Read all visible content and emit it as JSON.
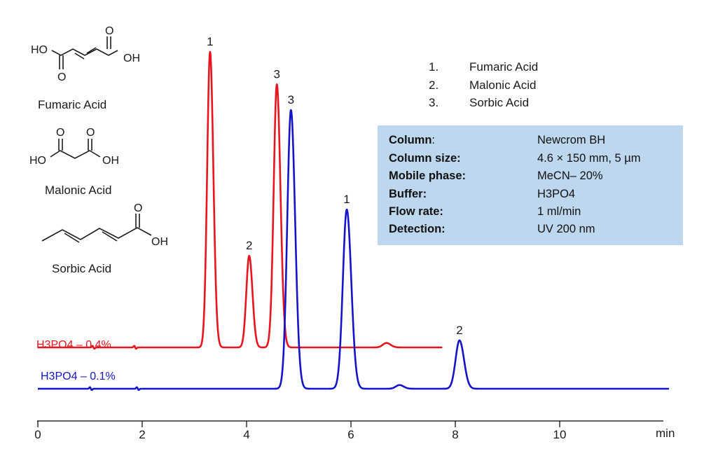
{
  "chart_data": {
    "type": "line",
    "xlabel": "min",
    "x_ticks": [
      0,
      2,
      4,
      6,
      8,
      10
    ],
    "xlim": [
      0,
      12.1
    ],
    "series": [
      {
        "name": "H3PO4 – 0.4%",
        "color": "#e8141e",
        "x_end": 7.75,
        "noise": [
          1.05,
          1.85
        ],
        "peaks": [
          {
            "label": "1",
            "time": 3.3,
            "height": 100,
            "width": 0.055
          },
          {
            "label": "2",
            "time": 4.05,
            "height": 31,
            "width": 0.055
          },
          {
            "label": "3",
            "time": 4.58,
            "height": 89,
            "width": 0.06
          },
          {
            "label": "",
            "time": 6.68,
            "height": 1.5,
            "width": 0.07
          }
        ]
      },
      {
        "name": "H3PO4 – 0.1%",
        "color": "#1414c8",
        "x_end": 12.1,
        "noise": [
          1.0,
          1.9
        ],
        "peaks": [
          {
            "label": "3",
            "time": 4.85,
            "height": 98,
            "width": 0.07
          },
          {
            "label": "1",
            "time": 5.92,
            "height": 63,
            "width": 0.075
          },
          {
            "label": "",
            "time": 6.93,
            "height": 1.3,
            "width": 0.07
          },
          {
            "label": "2",
            "time": 8.08,
            "height": 17,
            "width": 0.075
          }
        ]
      }
    ]
  },
  "compounds": {
    "fumaric": {
      "name": "Fumaric Acid",
      "ho": "HO",
      "oh": "OH",
      "o": "O"
    },
    "malonic": {
      "name": "Malonic Acid",
      "ho": "HO",
      "oh": "OH",
      "o": "O"
    },
    "sorbic": {
      "name": "Sorbic Acid",
      "oh": "OH",
      "o": "O"
    }
  },
  "legend": [
    {
      "num": "1.",
      "name": "Fumaric Acid"
    },
    {
      "num": "2.",
      "name": "Malonic Acid"
    },
    {
      "num": "3.",
      "name": "Sorbic Acid"
    }
  ],
  "conditions": [
    {
      "key": "Column",
      "sep": ":",
      "value": "Newcrom BH"
    },
    {
      "key": "Column size:",
      "sep": "",
      "value": "4.6 × 150 mm, 5 µm"
    },
    {
      "key": "Mobile phase:",
      "sep": "",
      "value": "MeCN– 20%"
    },
    {
      "key": "Buffer:",
      "sep": "",
      "value": "H3PO4"
    },
    {
      "key": "Flow rate:",
      "sep": "",
      "value": "1 ml/min"
    },
    {
      "key": "Detection:",
      "sep": "",
      "value": "UV 200 nm"
    }
  ],
  "colors": {
    "red": "#e8141e",
    "blue": "#1414c8",
    "panel": "#bdd7ee"
  }
}
